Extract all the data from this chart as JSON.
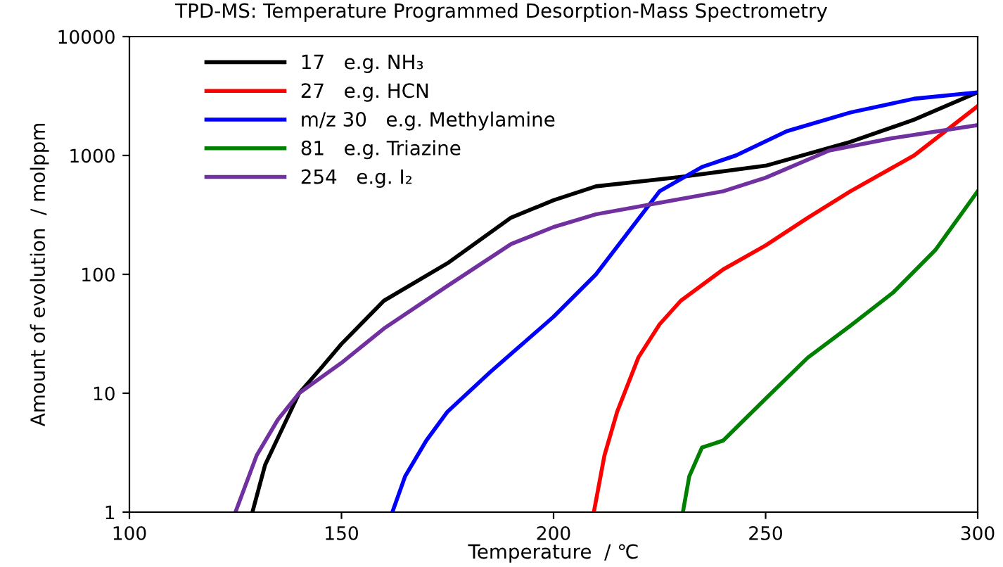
{
  "chart_data": {
    "type": "line",
    "title": "TPD-MS: Temperature Programmed Desorption-Mass Spectrometry",
    "xlabel": "Temperature  / ℃",
    "ylabel": "Amount of evolution  / molppm",
    "log": "y",
    "xlim": [
      100,
      300
    ],
    "xticks": [
      100,
      150,
      200,
      250,
      300
    ],
    "ylim": [
      1,
      10000
    ],
    "yticks": [
      1,
      10,
      100,
      1000,
      10000
    ],
    "grid": false,
    "legend": "top left",
    "series": [
      {
        "name": "17   e.g. NH₃",
        "color": "#000000",
        "x": [
          129,
          132,
          136,
          140,
          145,
          150,
          160,
          175,
          190,
          200,
          210,
          230,
          250,
          270,
          285,
          300
        ],
        "values": [
          1,
          2.5,
          5,
          10,
          16,
          26,
          60,
          124,
          300,
          420,
          550,
          660,
          820,
          1300,
          2000,
          3400
        ]
      },
      {
        "name": "27   e.g. HCN",
        "color": "#ff0000",
        "x": [
          209.5,
          212,
          215,
          220,
          225,
          230,
          240,
          250,
          260,
          270,
          285,
          300
        ],
        "values": [
          1,
          3,
          7,
          20,
          38,
          60,
          110,
          175,
          300,
          500,
          1000,
          2600
        ]
      },
      {
        "name": "m/z 30   e.g. Methylamine",
        "color": "#0000ff",
        "x": [
          162,
          165,
          170,
          175,
          185,
          200,
          210,
          225,
          235,
          243,
          255,
          270,
          285,
          300
        ],
        "values": [
          1,
          2,
          4,
          7,
          15,
          44,
          100,
          500,
          800,
          1000,
          1600,
          2300,
          3000,
          3400
        ]
      },
      {
        "name": "81   e.g. Triazine",
        "color": "#008000",
        "x": [
          230.5,
          232,
          235,
          240,
          250,
          260,
          270,
          280,
          290,
          300
        ],
        "values": [
          1,
          2,
          3.5,
          4,
          9,
          20,
          37,
          70,
          160,
          500
        ]
      },
      {
        "name": "254   e.g. I₂",
        "color": "#7030a0",
        "x": [
          125,
          130,
          135,
          140,
          150,
          160,
          175,
          190,
          200,
          210,
          225,
          240,
          250,
          265,
          280,
          300
        ],
        "values": [
          1,
          3,
          6,
          10,
          18,
          35,
          80,
          180,
          250,
          320,
          400,
          500,
          650,
          1100,
          1400,
          1800
        ]
      }
    ]
  }
}
